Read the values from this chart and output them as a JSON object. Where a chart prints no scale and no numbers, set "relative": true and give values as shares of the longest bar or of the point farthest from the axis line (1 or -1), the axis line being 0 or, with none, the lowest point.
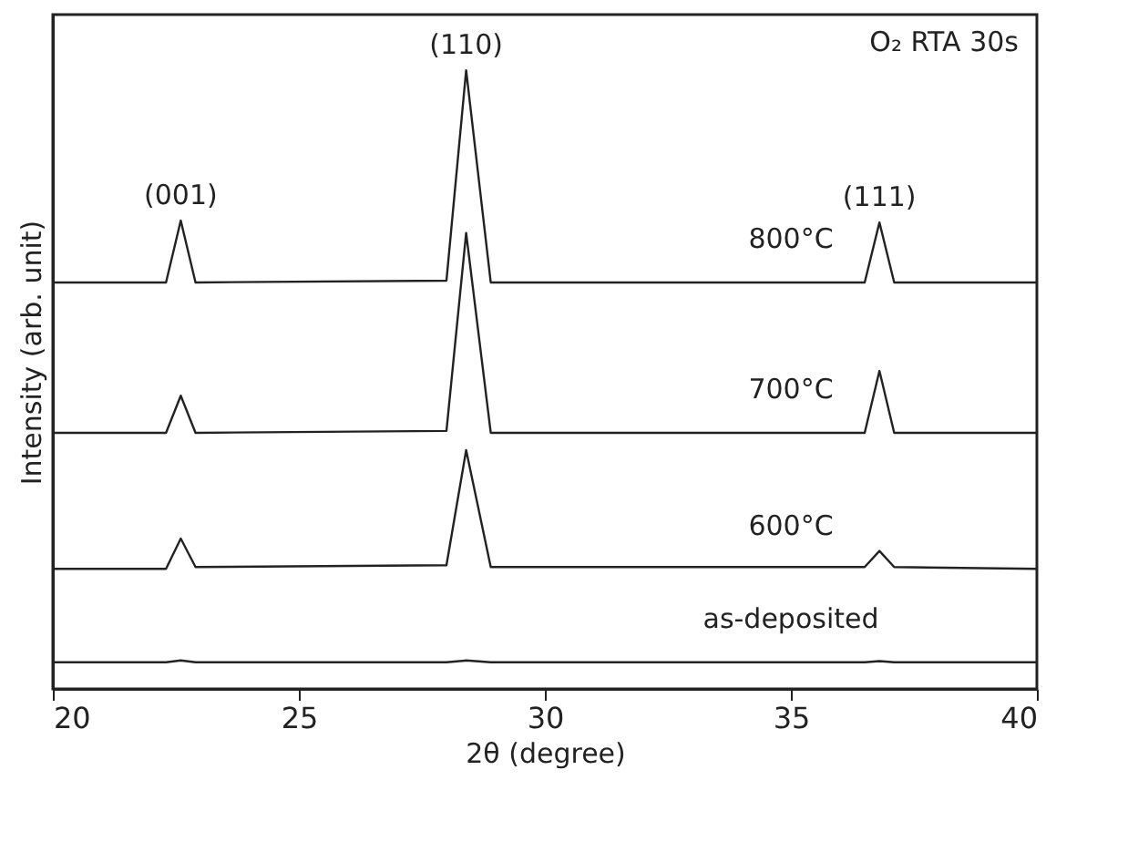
{
  "chart_data": {
    "type": "line",
    "relative": true,
    "xlabel": "2θ (degree)",
    "ylabel": "Intensity (arb. unit)",
    "xlim": [
      20,
      40
    ],
    "xticks": [
      20,
      25,
      30,
      35,
      40
    ],
    "grid": false,
    "marker": "none",
    "line_style": "solid",
    "x": [
      20,
      22.3,
      22.6,
      22.9,
      28.0,
      28.4,
      28.9,
      36.5,
      36.8,
      37.1,
      40
    ],
    "series": [
      {
        "name": "800°C",
        "color": "#222222",
        "values": [
          0.657,
          0.657,
          0.757,
          0.657,
          0.66,
          1.0,
          0.657,
          0.657,
          0.754,
          0.657,
          0.657
        ]
      },
      {
        "name": "700°C",
        "color": "#222222",
        "values": [
          0.414,
          0.414,
          0.474,
          0.414,
          0.417,
          0.737,
          0.414,
          0.414,
          0.514,
          0.414,
          0.414
        ]
      },
      {
        "name": "600°C",
        "color": "#222222",
        "values": [
          0.194,
          0.194,
          0.243,
          0.197,
          0.2,
          0.386,
          0.197,
          0.197,
          0.223,
          0.197,
          0.194
        ]
      },
      {
        "name": "as-deposited",
        "color": "#222222",
        "values": [
          0.043,
          0.043,
          0.046,
          0.043,
          0.043,
          0.046,
          0.043,
          0.043,
          0.045,
          0.043,
          0.043
        ]
      }
    ],
    "annotations": [
      {
        "text": "(001)",
        "x": 22.6,
        "y": 0.757
      },
      {
        "text": "(110)",
        "x": 28.4,
        "y": 1.0
      },
      {
        "text": "(111)",
        "x": 36.8,
        "y": 0.754
      },
      "O₂ RTA 30s"
    ]
  }
}
